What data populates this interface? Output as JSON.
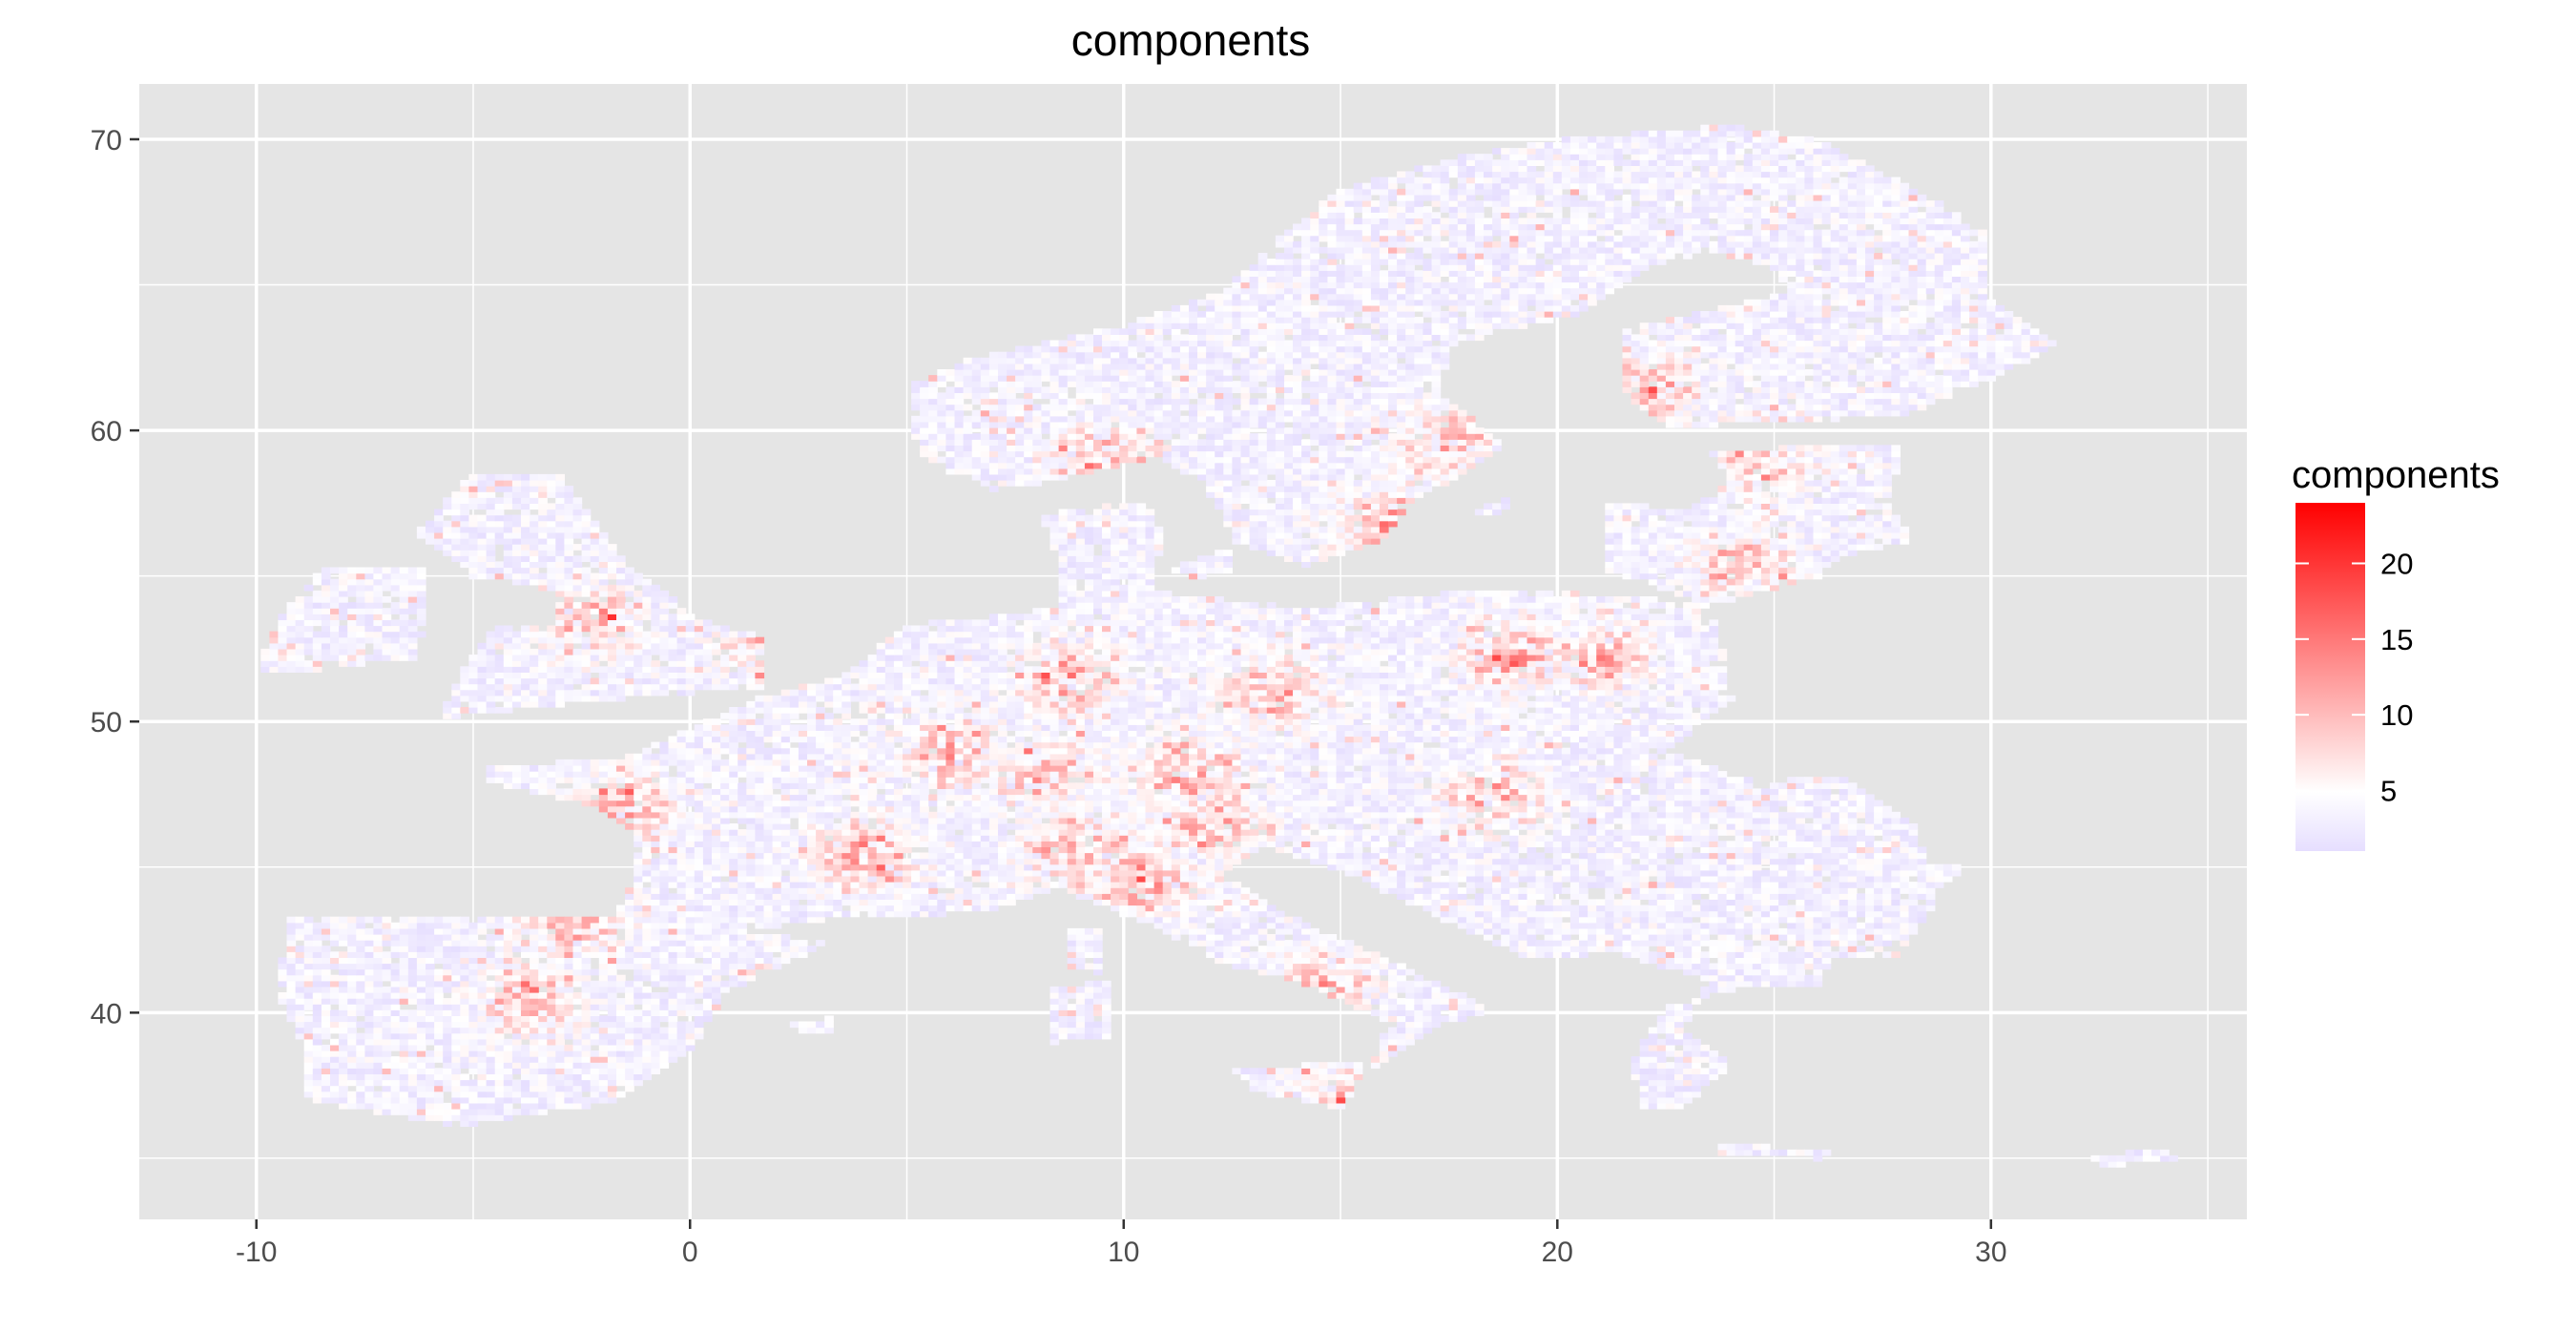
{
  "chart_data": {
    "type": "heatmap",
    "title": "components",
    "xlabel": "",
    "ylabel": "",
    "xlim": [
      -12.7,
      35.9
    ],
    "ylim": [
      32.9,
      71.9
    ],
    "x_ticks": [
      -10,
      0,
      10,
      20,
      30
    ],
    "y_ticks": [
      40,
      50,
      60,
      70
    ],
    "x_tick_labels": [
      "-10",
      "0",
      "10",
      "20",
      "30"
    ],
    "y_tick_labels": [
      "40",
      "50",
      "60",
      "70"
    ],
    "grid": true,
    "panel_background": "#e5e5e5",
    "grid_color": "#ffffff",
    "legend": {
      "title": "components",
      "placement": "right",
      "scale_min": 1,
      "scale_max": 24,
      "breaks": [
        5,
        10,
        15,
        20
      ],
      "break_labels": [
        "5",
        "10",
        "15",
        "20"
      ],
      "color_low": "#e6deff",
      "color_mid": "#ffffff",
      "color_high": "#ff0000"
    },
    "regions": [
      {
        "name": "Ireland",
        "points": [
          [
            -10,
            51.7
          ],
          [
            -9.5,
            53.5
          ],
          [
            -8.5,
            55.2
          ],
          [
            -6.2,
            55.3
          ],
          [
            -6,
            53.5
          ],
          [
            -6.4,
            52.2
          ],
          [
            -9.5,
            51.6
          ]
        ]
      },
      {
        "name": "Great Britain",
        "points": [
          [
            -5.8,
            50.1
          ],
          [
            -3,
            50.6
          ],
          [
            1.6,
            51.2
          ],
          [
            1.8,
            52.9
          ],
          [
            0.2,
            53.5
          ],
          [
            -1.5,
            55.5
          ],
          [
            -2,
            56.5
          ],
          [
            -3,
            58.6
          ],
          [
            -5,
            58.6
          ],
          [
            -6.3,
            56.5
          ],
          [
            -5,
            55
          ],
          [
            -3,
            54.5
          ],
          [
            -3.2,
            53.4
          ],
          [
            -4.5,
            53.3
          ],
          [
            -5.3,
            51.7
          ]
        ]
      },
      {
        "name": "Iberia",
        "points": [
          [
            -9.3,
            43.3
          ],
          [
            -1.7,
            43.4
          ],
          [
            3.2,
            42.4
          ],
          [
            0.8,
            40.7
          ],
          [
            0.1,
            38.8
          ],
          [
            -1.9,
            36.9
          ],
          [
            -5.4,
            36.1
          ],
          [
            -8.8,
            37.0
          ],
          [
            -8.9,
            38.7
          ],
          [
            -9.5,
            40.7
          ]
        ]
      },
      {
        "name": "Mainland",
        "points": [
          [
            -4.7,
            48.4
          ],
          [
            -1.5,
            48.8
          ],
          [
            1.5,
            50.8
          ],
          [
            3.5,
            51.6
          ],
          [
            5,
            53.3
          ],
          [
            8.5,
            53.9
          ],
          [
            8.5,
            55.5
          ],
          [
            8.1,
            57.1
          ],
          [
            10.5,
            57.6
          ],
          [
            10.9,
            56.4
          ],
          [
            10.6,
            54.5
          ],
          [
            14.2,
            53.9
          ],
          [
            18.5,
            54.6
          ],
          [
            23.5,
            54.1
          ],
          [
            23.8,
            52.5
          ],
          [
            24.0,
            50.8
          ],
          [
            22.5,
            49.0
          ],
          [
            24.8,
            47.9
          ],
          [
            26.5,
            48.2
          ],
          [
            28.2,
            46.5
          ],
          [
            28.5,
            45.2
          ],
          [
            29.6,
            45.2
          ],
          [
            28.7,
            44.3
          ],
          [
            28.6,
            43.5
          ],
          [
            27.9,
            42.0
          ],
          [
            26.3,
            41.9
          ],
          [
            26.0,
            40.9
          ],
          [
            24.0,
            40.8
          ],
          [
            22.5,
            40.2
          ],
          [
            21.7,
            38.3
          ],
          [
            22.0,
            36.6
          ],
          [
            22.8,
            36.7
          ],
          [
            24.0,
            38.2
          ],
          [
            22.9,
            39.5
          ],
          [
            23.5,
            41.1
          ],
          [
            21.2,
            42.1
          ],
          [
            19.5,
            41.8
          ],
          [
            17.5,
            43.1
          ],
          [
            15.3,
            44.7
          ],
          [
            14.0,
            45.4
          ],
          [
            13.2,
            45.7
          ],
          [
            12.3,
            44.8
          ],
          [
            13.6,
            43.5
          ],
          [
            16.0,
            41.9
          ],
          [
            18.5,
            40.1
          ],
          [
            17.0,
            39.4
          ],
          [
            16.5,
            38.9
          ],
          [
            15.7,
            38.0
          ],
          [
            16.1,
            39.7
          ],
          [
            14.3,
            40.9
          ],
          [
            12.3,
            41.7
          ],
          [
            10.5,
            43.1
          ],
          [
            8.5,
            44.3
          ],
          [
            6.8,
            43.5
          ],
          [
            5.0,
            43.3
          ],
          [
            3.0,
            43.2
          ],
          [
            1.3,
            42.8
          ],
          [
            -1.7,
            43.4
          ],
          [
            -1.3,
            44.5
          ],
          [
            -1.2,
            46.2
          ],
          [
            -2.4,
            47.2
          ],
          [
            -4.7,
            47.9
          ]
        ]
      },
      {
        "name": "Scandinavia",
        "points": [
          [
            5.5,
            58.9
          ],
          [
            7.0,
            58.0
          ],
          [
            8.5,
            58.3
          ],
          [
            10.7,
            59.1
          ],
          [
            11.8,
            58.3
          ],
          [
            12.6,
            56.2
          ],
          [
            14.2,
            55.4
          ],
          [
            16.0,
            56.3
          ],
          [
            16.7,
            57.6
          ],
          [
            18.8,
            59.4
          ],
          [
            17.3,
            61.3
          ],
          [
            17.5,
            62.9
          ],
          [
            20.5,
            64.0
          ],
          [
            22.0,
            65.6
          ],
          [
            23.5,
            66.2
          ],
          [
            25.0,
            65.6
          ],
          [
            25.4,
            64.8
          ],
          [
            21.5,
            63.5
          ],
          [
            21.4,
            61.5
          ],
          [
            22.5,
            60.1
          ],
          [
            25.0,
            60.3
          ],
          [
            28.0,
            60.5
          ],
          [
            30.0,
            61.8
          ],
          [
            31.5,
            62.9
          ],
          [
            30.0,
            64.5
          ],
          [
            29.8,
            67.0
          ],
          [
            28.0,
            68.5
          ],
          [
            26.0,
            70.0
          ],
          [
            24.0,
            70.5
          ],
          [
            20.0,
            70.0
          ],
          [
            18.0,
            69.5
          ],
          [
            15.0,
            68.3
          ],
          [
            13.5,
            66.5
          ],
          [
            12.3,
            64.8
          ],
          [
            10.0,
            63.6
          ],
          [
            6.5,
            62.5
          ],
          [
            5.0,
            61.5
          ],
          [
            5.0,
            60.0
          ]
        ]
      },
      {
        "name": "Baltics",
        "points": [
          [
            21.0,
            56.0
          ],
          [
            21.2,
            57.5
          ],
          [
            23.0,
            57.3
          ],
          [
            24.0,
            58.3
          ],
          [
            23.5,
            59.2
          ],
          [
            26.0,
            59.5
          ],
          [
            28.0,
            59.4
          ],
          [
            27.6,
            57.7
          ],
          [
            28.2,
            56.2
          ],
          [
            26.6,
            55.7
          ],
          [
            26.0,
            55.0
          ],
          [
            23.5,
            54.0
          ],
          [
            21.0,
            55.3
          ]
        ]
      },
      {
        "name": "Sicily",
        "points": [
          [
            12.5,
            38.1
          ],
          [
            15.6,
            38.3
          ],
          [
            15.1,
            36.7
          ],
          [
            13.0,
            37.3
          ]
        ]
      },
      {
        "name": "Sardinia",
        "points": [
          [
            8.2,
            40.9
          ],
          [
            9.8,
            41.1
          ],
          [
            9.6,
            39.2
          ],
          [
            8.4,
            39.0
          ]
        ]
      },
      {
        "name": "Corsica",
        "points": [
          [
            8.6,
            42.9
          ],
          [
            9.5,
            43.0
          ],
          [
            9.4,
            41.4
          ],
          [
            8.8,
            41.5
          ]
        ]
      },
      {
        "name": "Crete",
        "points": [
          [
            23.6,
            35.5
          ],
          [
            26.3,
            35.3
          ],
          [
            26.0,
            35.0
          ],
          [
            23.7,
            35.2
          ]
        ]
      },
      {
        "name": "Cyprus",
        "points": [
          [
            32.3,
            35.0
          ],
          [
            34.0,
            35.4
          ],
          [
            34.2,
            35.0
          ],
          [
            32.5,
            34.7
          ]
        ]
      },
      {
        "name": "Zealand",
        "points": [
          [
            11.0,
            55.3
          ],
          [
            12.6,
            56.0
          ],
          [
            12.5,
            55.2
          ],
          [
            11.5,
            54.9
          ]
        ]
      },
      {
        "name": "Gotland",
        "points": [
          [
            18.1,
            57.2
          ],
          [
            19.0,
            57.9
          ],
          [
            18.8,
            57.2
          ]
        ]
      },
      {
        "name": "Mallorca",
        "points": [
          [
            2.3,
            39.6
          ],
          [
            3.4,
            39.9
          ],
          [
            3.2,
            39.3
          ],
          [
            2.5,
            39.4
          ]
        ]
      }
    ],
    "hotspots": [
      [
        18.5,
        47.5
      ],
      [
        10.5,
        44.5
      ],
      [
        4.0,
        45.5
      ],
      [
        8.0,
        48.3
      ],
      [
        19.0,
        52.2
      ],
      [
        13.5,
        51.0
      ],
      [
        2.0,
        52.5
      ],
      [
        8.7,
        51.5
      ],
      [
        9.0,
        45.5
      ],
      [
        -2.3,
        53.5
      ],
      [
        -3.7,
        40.4
      ],
      [
        -2.8,
        43.2
      ],
      [
        14.5,
        41.0
      ],
      [
        15.5,
        37.5
      ],
      [
        16.0,
        56.7
      ],
      [
        17.5,
        59.5
      ],
      [
        22.0,
        61.5
      ],
      [
        12.0,
        46.5
      ],
      [
        -1.5,
        47.0
      ],
      [
        24.5,
        59.0
      ],
      [
        9.5,
        59.0
      ],
      [
        21.0,
        52.2
      ],
      [
        11.5,
        48.2
      ],
      [
        6.0,
        49.0
      ],
      [
        24.3,
        55.3
      ]
    ]
  }
}
